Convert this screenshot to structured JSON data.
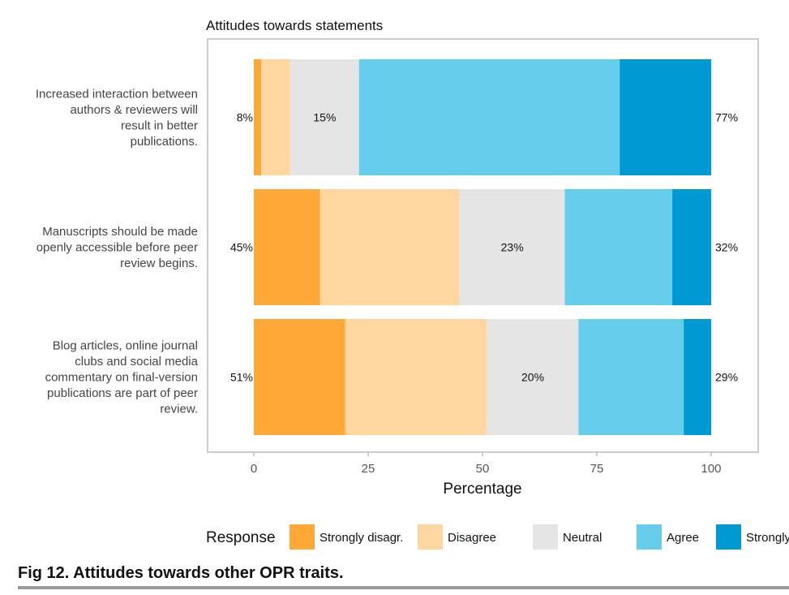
{
  "chart_data": {
    "type": "bar",
    "orientation": "horizontal-stacked",
    "title": "Attitudes towards statements",
    "xlabel": "Percentage",
    "ylabel": "",
    "xlim": [
      0,
      100
    ],
    "xticks": [
      0,
      25,
      50,
      75,
      100
    ],
    "legend_title": "Response",
    "legend_position": "bottom",
    "categories": [
      [
        "Increased interaction between",
        "authors & reviewers will",
        "result in better",
        "publications."
      ],
      [
        "Manuscripts should be made",
        "openly accessible before peer",
        "review begins."
      ],
      [
        "Blog articles, online journal",
        "clubs and social media",
        "commentary on final-version",
        "publications are part of peer",
        "review."
      ]
    ],
    "series": [
      {
        "name": "Strongly disagr.",
        "color": "#FFA838",
        "values": [
          1.6,
          14.5,
          20
        ]
      },
      {
        "name": "Disagree",
        "color": "#FFD6A0",
        "values": [
          6.4,
          30.5,
          31
        ]
      },
      {
        "name": "Neutral",
        "color": "#E5E5E5",
        "values": [
          15,
          23,
          20
        ]
      },
      {
        "name": "Agree",
        "color": "#66CDEA",
        "values": [
          57,
          23.5,
          23
        ]
      },
      {
        "name": "Strongly agr.",
        "color": "#0099D3",
        "values": [
          20,
          8.5,
          6
        ]
      }
    ],
    "left_labels": [
      "8%",
      "45%",
      "51%"
    ],
    "center_labels": [
      "15%",
      "23%",
      "20%"
    ],
    "right_labels": [
      "77%",
      "32%",
      "29%"
    ]
  },
  "caption": "Fig 12.  Attitudes towards other OPR traits."
}
